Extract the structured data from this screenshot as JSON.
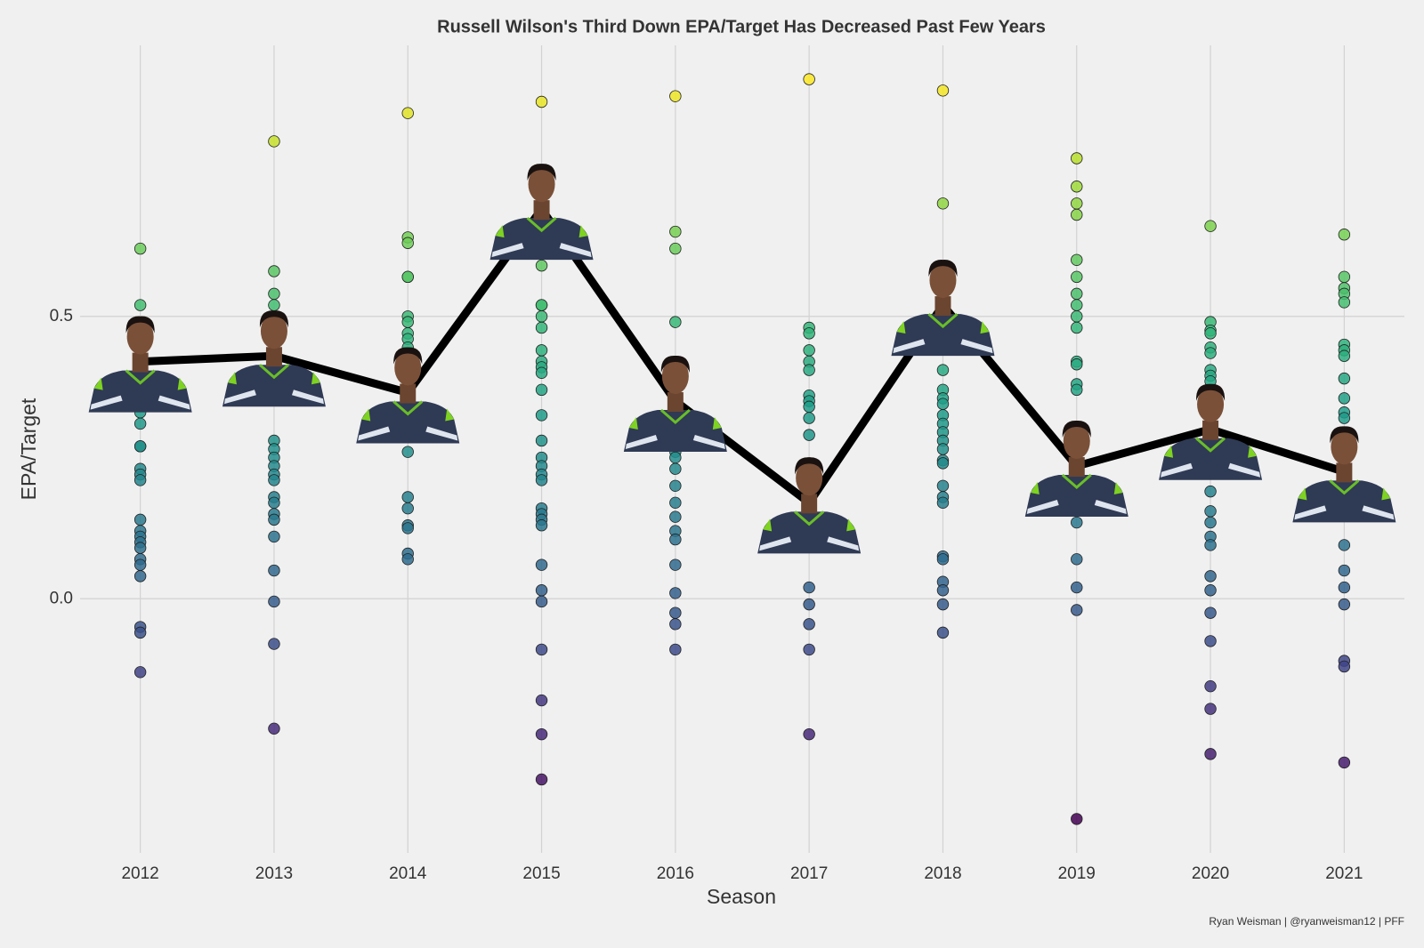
{
  "chart_data": {
    "type": "scatter",
    "title": "Russell Wilson's Third Down EPA/Target Has Decreased Past Few Years",
    "x_label": "Season",
    "y_label": "EPA/Target",
    "caption": "Ryan Weisman | @ryanweisman12 | PFF",
    "xlim": [
      2011.55,
      2021.45
    ],
    "ylim": [
      -0.45,
      0.98
    ],
    "xticks": [
      2012,
      2013,
      2014,
      2015,
      2016,
      2017,
      2018,
      2019,
      2020,
      2021
    ],
    "yticks": [
      {
        "value": 0,
        "label": "0.0"
      },
      0.5
    ],
    "grid": true,
    "colormap": "viridis",
    "points": [
      {
        "season": 2012,
        "values": [
          0.62,
          0.52,
          0.36,
          0.33,
          0.31,
          0.27,
          0.27,
          0.23,
          0.22,
          0.21,
          0.14,
          0.12,
          0.11,
          0.1,
          0.09,
          0.07,
          0.06,
          0.04,
          -0.05,
          -0.06,
          -0.13
        ]
      },
      {
        "season": 2013,
        "values": [
          0.81,
          0.58,
          0.54,
          0.52,
          0.5,
          0.28,
          0.265,
          0.25,
          0.235,
          0.22,
          0.21,
          0.18,
          0.17,
          0.15,
          0.14,
          0.11,
          0.05,
          -0.005,
          -0.08,
          -0.23
        ]
      },
      {
        "season": 2014,
        "values": [
          0.86,
          0.64,
          0.63,
          0.57,
          0.57,
          0.5,
          0.49,
          0.47,
          0.46,
          0.445,
          0.26,
          0.18,
          0.16,
          0.13,
          0.125,
          0.08,
          0.07
        ]
      },
      {
        "season": 2015,
        "values": [
          0.88,
          0.68,
          0.64,
          0.59,
          0.52,
          0.52,
          0.5,
          0.48,
          0.44,
          0.42,
          0.41,
          0.4,
          0.37,
          0.325,
          0.28,
          0.25,
          0.235,
          0.22,
          0.21,
          0.16,
          0.15,
          0.14,
          0.13,
          0.06,
          0.015,
          -0.005,
          -0.09,
          -0.18,
          -0.24,
          -0.32
        ]
      },
      {
        "season": 2016,
        "values": [
          0.89,
          0.65,
          0.62,
          0.49,
          0.29,
          0.26,
          0.25,
          0.23,
          0.2,
          0.17,
          0.145,
          0.12,
          0.105,
          0.06,
          0.01,
          -0.025,
          -0.045,
          -0.09
        ]
      },
      {
        "season": 2017,
        "values": [
          0.92,
          0.48,
          0.47,
          0.44,
          0.42,
          0.405,
          0.36,
          0.35,
          0.34,
          0.32,
          0.29,
          0.24,
          0.235,
          0.02,
          -0.01,
          -0.045,
          -0.09,
          -0.24
        ]
      },
      {
        "season": 2018,
        "values": [
          0.9,
          0.7,
          0.47,
          0.455,
          0.405,
          0.37,
          0.355,
          0.345,
          0.325,
          0.31,
          0.295,
          0.28,
          0.265,
          0.245,
          0.24,
          0.2,
          0.18,
          0.17,
          0.075,
          0.07,
          0.03,
          0.015,
          -0.01,
          -0.06
        ]
      },
      {
        "season": 2019,
        "values": [
          0.78,
          0.73,
          0.7,
          0.68,
          0.6,
          0.57,
          0.54,
          0.52,
          0.5,
          0.48,
          0.42,
          0.415,
          0.38,
          0.37,
          0.135,
          0.07,
          0.02,
          -0.02,
          -0.39
        ]
      },
      {
        "season": 2020,
        "values": [
          0.66,
          0.49,
          0.475,
          0.47,
          0.445,
          0.435,
          0.405,
          0.395,
          0.385,
          0.19,
          0.155,
          0.135,
          0.11,
          0.095,
          0.04,
          0.015,
          -0.025,
          -0.075,
          -0.155,
          -0.195,
          -0.275
        ]
      },
      {
        "season": 2021,
        "values": [
          0.645,
          0.57,
          0.55,
          0.54,
          0.525,
          0.45,
          0.44,
          0.43,
          0.39,
          0.355,
          0.33,
          0.32,
          0.095,
          0.05,
          0.02,
          -0.01,
          -0.11,
          -0.12,
          -0.29
        ]
      }
    ],
    "line": {
      "color": "#000000",
      "x": [
        2012,
        2013,
        2014,
        2015,
        2016,
        2017,
        2018,
        2019,
        2020,
        2021
      ],
      "values": [
        0.42,
        0.43,
        0.365,
        0.69,
        0.35,
        0.17,
        0.52,
        0.235,
        0.3,
        0.225
      ]
    }
  }
}
